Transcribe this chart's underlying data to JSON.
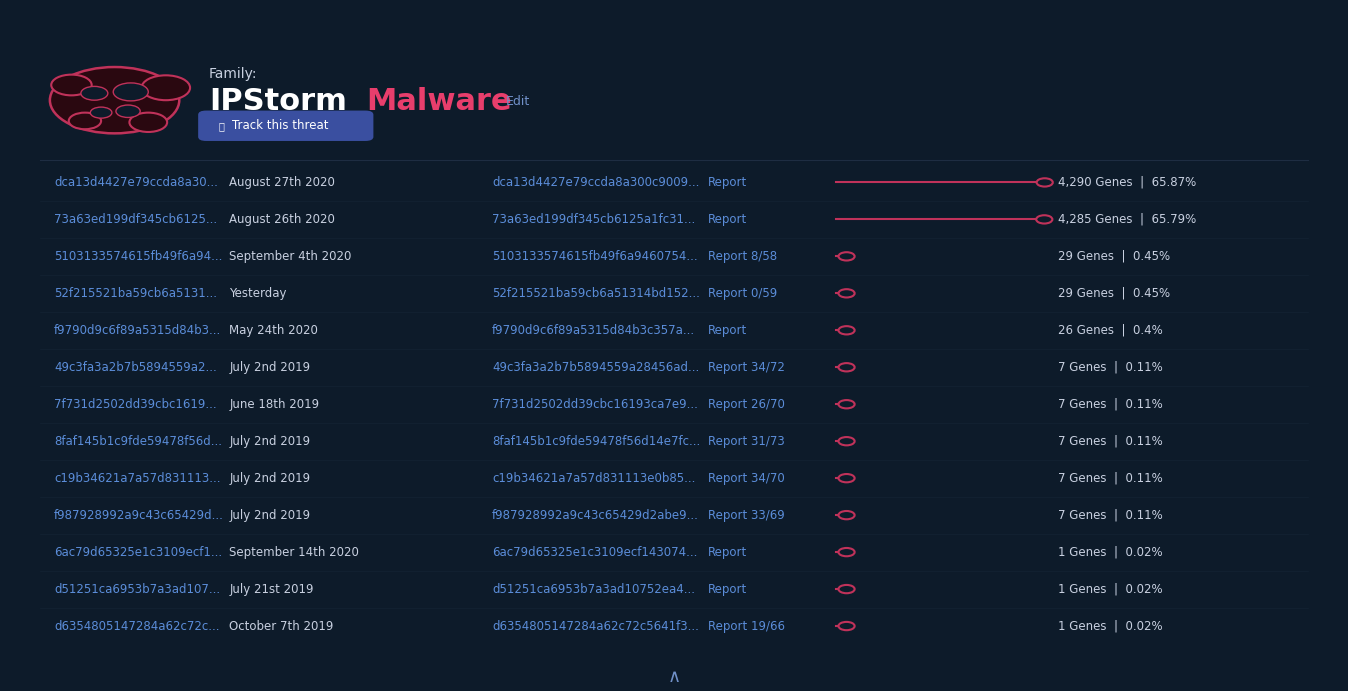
{
  "bg_color": "#0d1b2a",
  "family_label": "Family:",
  "title_white": "IPStorm",
  "title_red": "Malware",
  "title_edit": "Edit",
  "button_text": "Track this threat",
  "rows": [
    {
      "hash": "dca13d4427e79ccda8a30...",
      "date": "August 27th 2020",
      "full_hash": "dca13d4427e79ccda8a300c9009...",
      "report": "Report",
      "genes": 4290,
      "pct": "65.87%",
      "bar_pct": 1.0
    },
    {
      "hash": "73a63ed199df345cb6125...",
      "date": "August 26th 2020",
      "full_hash": "73a63ed199df345cb6125a1fc31...",
      "report": "Report",
      "genes": 4285,
      "pct": "65.79%",
      "bar_pct": 0.998
    },
    {
      "hash": "5103133574615fb49f6a94...",
      "date": "September 4th 2020",
      "full_hash": "5103133574615fb49f6a9460754...",
      "report": "Report 8/58",
      "genes": 29,
      "pct": "0.45%",
      "bar_pct": 0.0068
    },
    {
      "hash": "52f215521ba59cb6a5131...",
      "date": "Yesterday",
      "full_hash": "52f215521ba59cb6a51314bd152...",
      "report": "Report 0/59",
      "genes": 29,
      "pct": "0.45%",
      "bar_pct": 0.0068
    },
    {
      "hash": "f9790d9c6f89a5315d84b3...",
      "date": "May 24th 2020",
      "full_hash": "f9790d9c6f89a5315d84b3c357a...",
      "report": "Report",
      "genes": 26,
      "pct": "0.4%",
      "bar_pct": 0.0061
    },
    {
      "hash": "49c3fa3a2b7b5894559a2...",
      "date": "July 2nd 2019",
      "full_hash": "49c3fa3a2b7b5894559a28456ad...",
      "report": "Report 34/72",
      "genes": 7,
      "pct": "0.11%",
      "bar_pct": 0.0016
    },
    {
      "hash": "7f731d2502dd39cbc1619...",
      "date": "June 18th 2019",
      "full_hash": "7f731d2502dd39cbc16193ca7e9...",
      "report": "Report 26/70",
      "genes": 7,
      "pct": "0.11%",
      "bar_pct": 0.0016
    },
    {
      "hash": "8faf145b1c9fde59478f56d...",
      "date": "July 2nd 2019",
      "full_hash": "8faf145b1c9fde59478f56d14e7fc...",
      "report": "Report 31/73",
      "genes": 7,
      "pct": "0.11%",
      "bar_pct": 0.0016
    },
    {
      "hash": "c19b34621a7a57d831113...",
      "date": "July 2nd 2019",
      "full_hash": "c19b34621a7a57d831113e0b85...",
      "report": "Report 34/70",
      "genes": 7,
      "pct": "0.11%",
      "bar_pct": 0.0016
    },
    {
      "hash": "f987928992a9c43c65429d...",
      "date": "July 2nd 2019",
      "full_hash": "f987928992a9c43c65429d2abe9...",
      "report": "Report 33/69",
      "genes": 7,
      "pct": "0.11%",
      "bar_pct": 0.0016
    },
    {
      "hash": "6ac79d65325e1c3109ecf1...",
      "date": "September 14th 2020",
      "full_hash": "6ac79d65325e1c3109ecf143074...",
      "report": "Report",
      "genes": 1,
      "pct": "0.02%",
      "bar_pct": 0.0002
    },
    {
      "hash": "d51251ca6953b7a3ad107...",
      "date": "July 21st 2019",
      "full_hash": "d51251ca6953b7a3ad10752ea4...",
      "report": "Report",
      "genes": 1,
      "pct": "0.02%",
      "bar_pct": 0.0002
    },
    {
      "hash": "d6354805147284a62c72c...",
      "date": "October 7th 2019",
      "full_hash": "d6354805147284a62c72c5641f3...",
      "report": "Report 19/66",
      "genes": 1,
      "pct": "0.02%",
      "bar_pct": 0.0002
    }
  ],
  "hash_color": "#5b8dd9",
  "date_color": "#c8d0e0",
  "report_color": "#5b8dd9",
  "genes_color": "#c8d0e0",
  "bar_line_color": "#c0325a",
  "bar_dot_color": "#c0325a",
  "font_size_row": 8.5,
  "divider_color": "#1e2d42"
}
